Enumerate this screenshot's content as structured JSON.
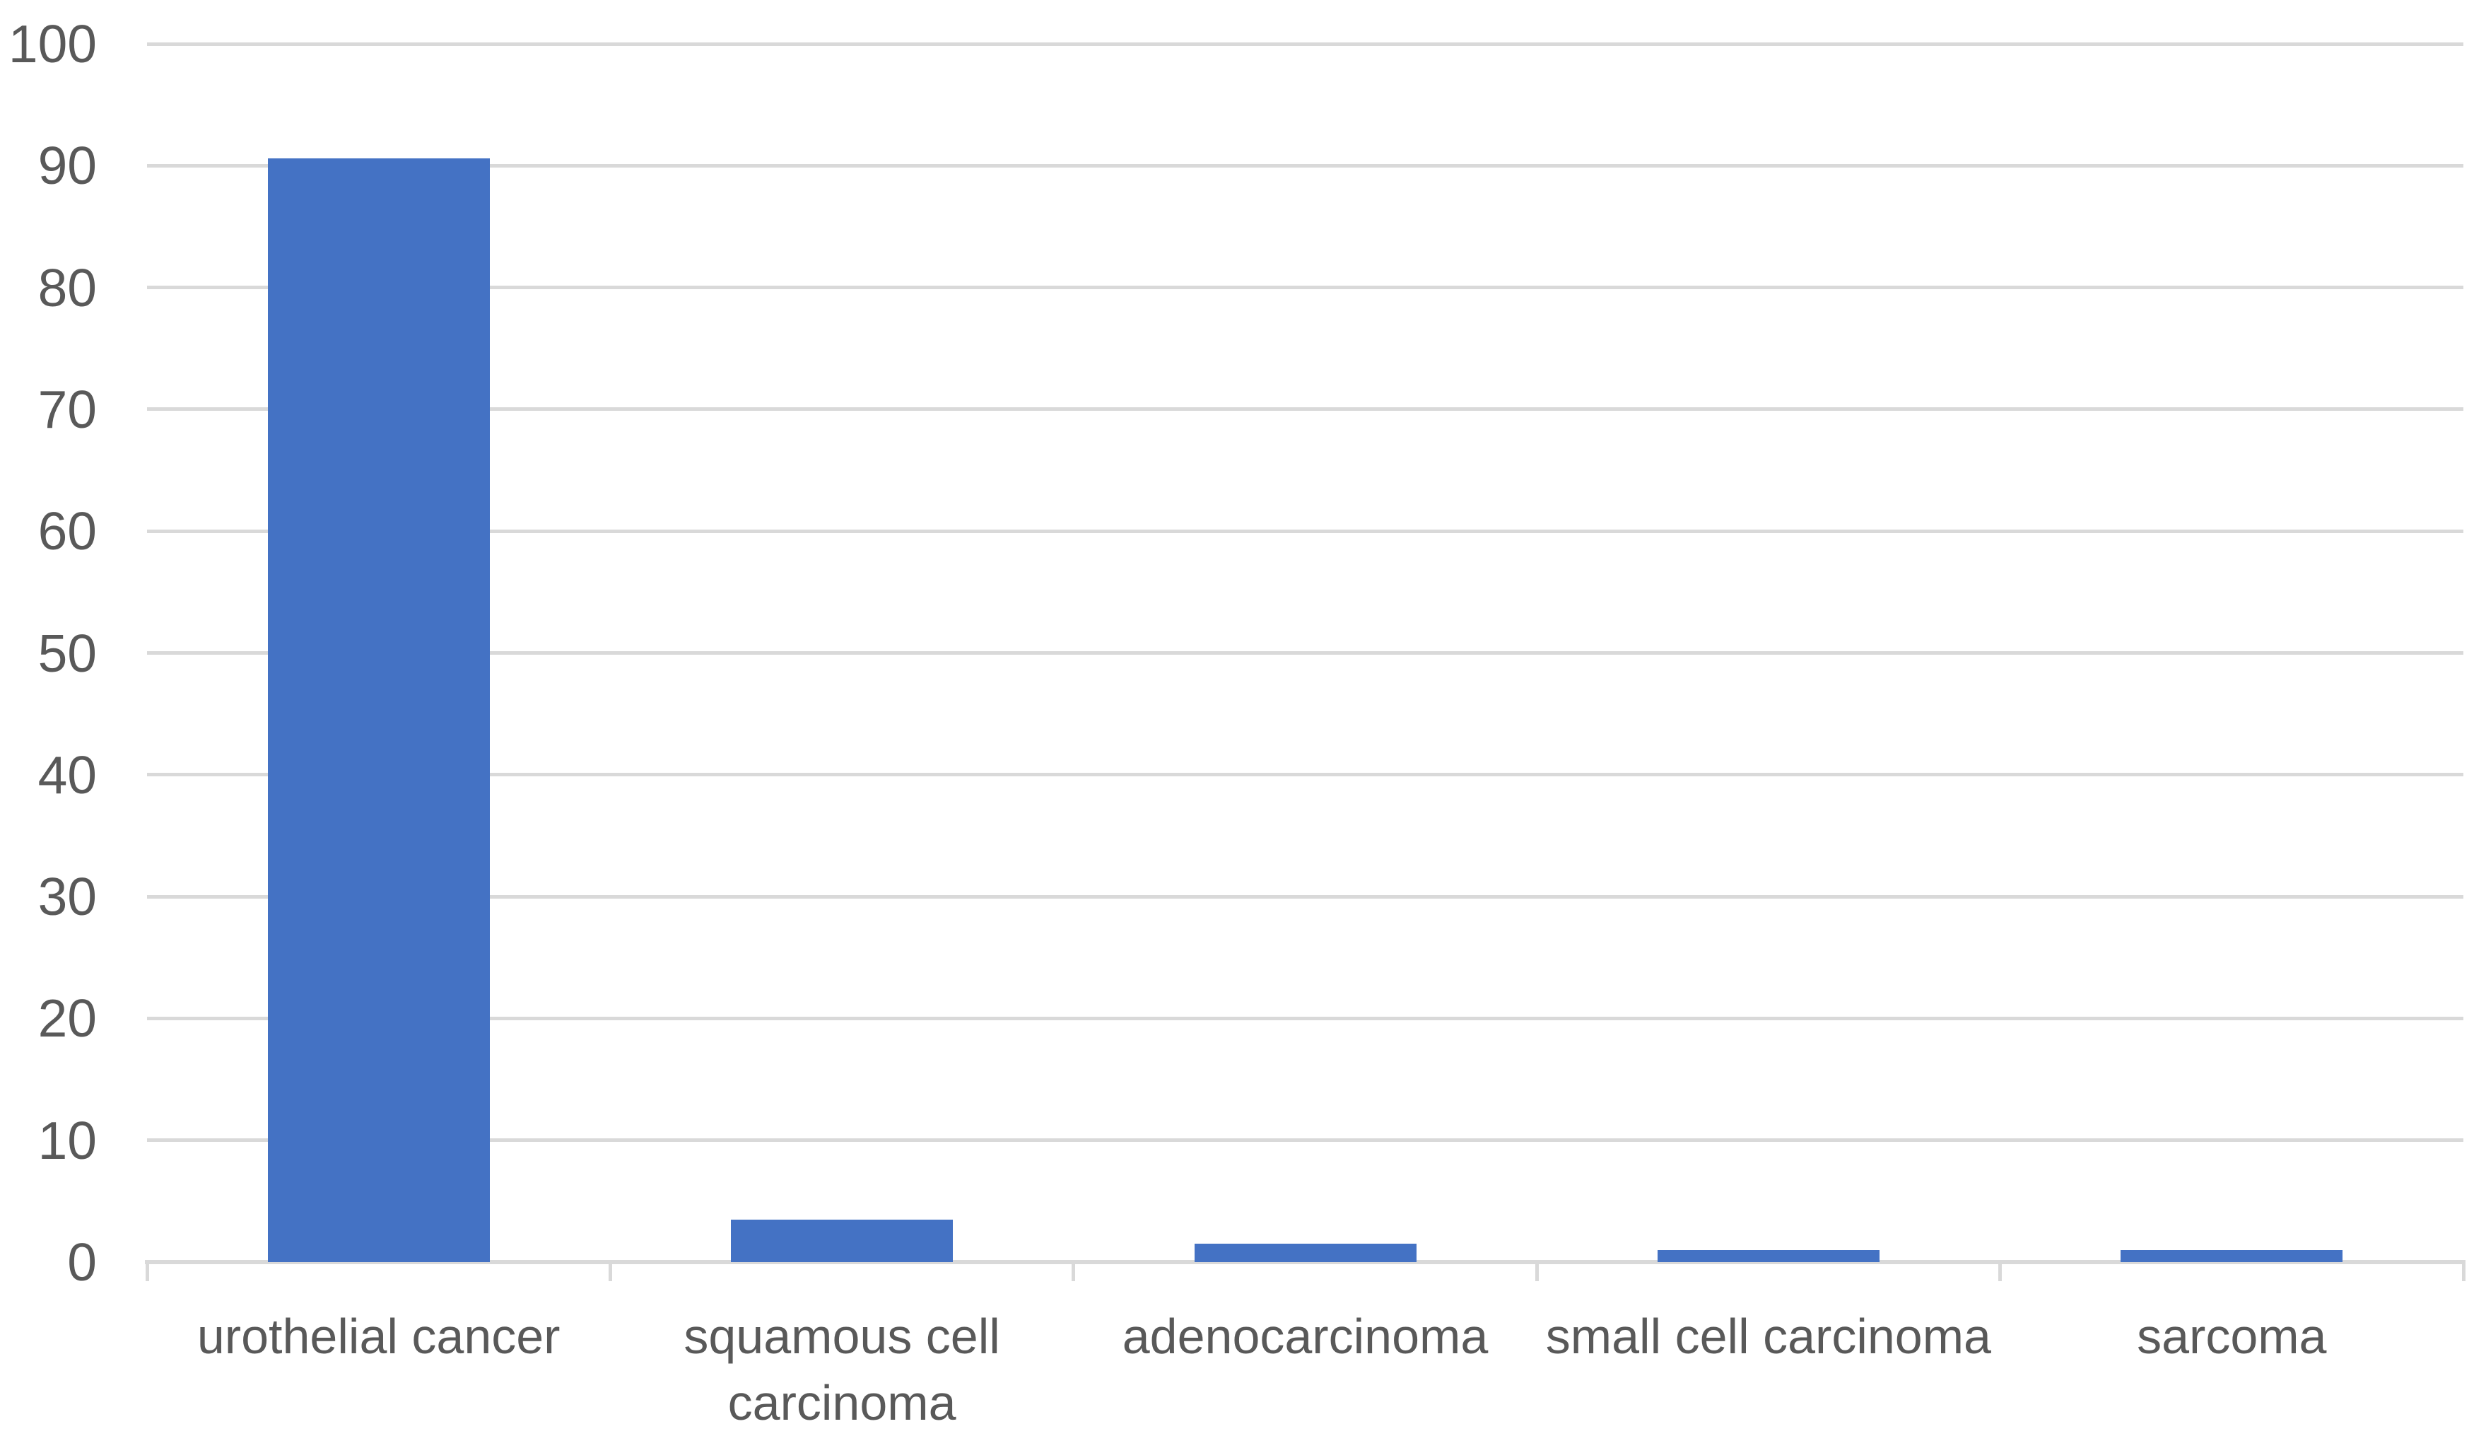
{
  "chart_data": {
    "type": "bar",
    "categories": [
      "urothelial cancer",
      "squamous cell carcinoma",
      "adenocarcinoma",
      "small cell carcinoma",
      "sarcoma"
    ],
    "values": [
      90.6,
      3.5,
      1.5,
      1,
      1
    ],
    "series_name": "",
    "title": "",
    "subtitle": "",
    "xlabel": "",
    "ylabel": "",
    "ylim": [
      0,
      100
    ],
    "ytick_step": 10,
    "yticks": [
      0,
      10,
      20,
      30,
      40,
      50,
      60,
      70,
      80,
      90,
      100
    ],
    "grid": true,
    "legend": false,
    "legend_position": "none",
    "colors": {
      "bar": "#4472C4",
      "gridline": "#D9D9D9",
      "axis_line": "#D9D9D9",
      "tick_label": "#595959",
      "category_label": "#595959",
      "background": "#FFFFFF"
    }
  }
}
